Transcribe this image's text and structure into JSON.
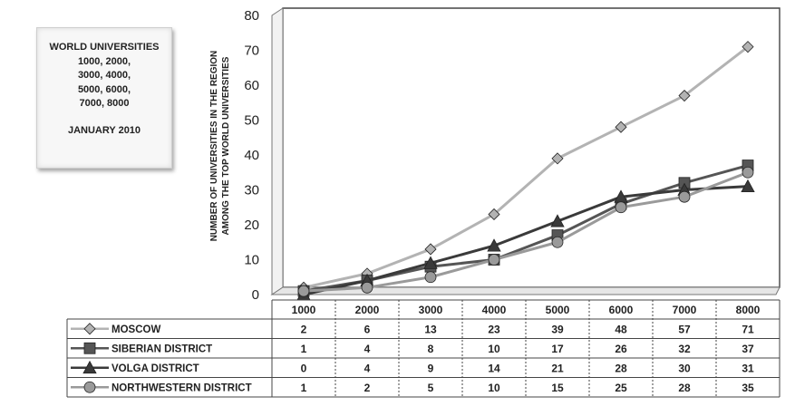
{
  "infobox": {
    "lines": [
      "WORLD UNIVERSITIES",
      "1000, 2000,",
      "3000, 4000,",
      "5000, 6000,",
      "7000, 8000"
    ],
    "date": "JANUARY 2010"
  },
  "chart_data": {
    "type": "line",
    "ylabel_lines": [
      "NUMBER OF UNIVERSITIES IN THE REGION",
      "AMONG THE TOP WORLD UNIVERSITIES"
    ],
    "xlabel": "",
    "categories": [
      "1000",
      "2000",
      "3000",
      "4000",
      "5000",
      "6000",
      "7000",
      "8000"
    ],
    "ylim": [
      0,
      80
    ],
    "yticks": [
      0,
      10,
      20,
      30,
      40,
      50,
      60,
      70,
      80
    ],
    "grid": false,
    "legend": "data-table",
    "series": [
      {
        "name": "MOSCOW",
        "values": [
          2,
          6,
          13,
          23,
          39,
          48,
          57,
          71
        ],
        "color": "#b3b3b3",
        "marker": "diamond"
      },
      {
        "name": "SIBERIAN DISTRICT",
        "values": [
          1,
          4,
          8,
          10,
          17,
          26,
          32,
          37
        ],
        "color": "#555555",
        "marker": "square"
      },
      {
        "name": "VOLGA DISTRICT",
        "values": [
          0,
          4,
          9,
          14,
          21,
          28,
          30,
          31
        ],
        "color": "#3a3a3a",
        "marker": "triangle"
      },
      {
        "name": "NORTHWESTERN DISTRICT",
        "values": [
          1,
          2,
          5,
          10,
          15,
          25,
          28,
          35
        ],
        "color": "#9a9a9a",
        "marker": "circle"
      }
    ]
  }
}
